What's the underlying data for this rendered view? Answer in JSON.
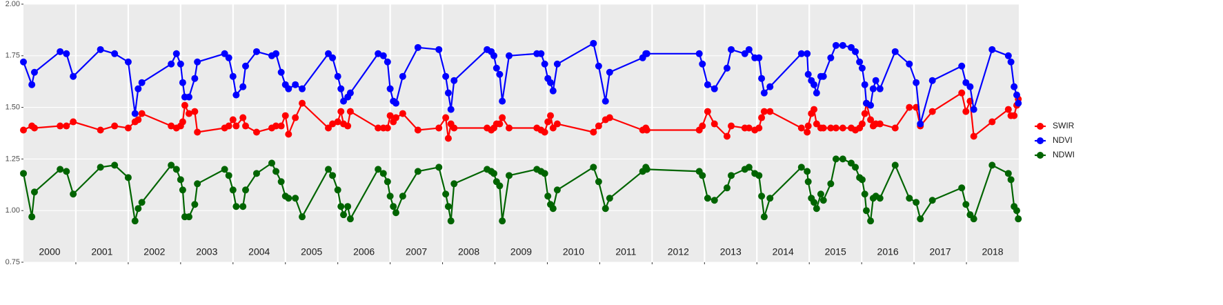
{
  "chart_data": {
    "type": "line",
    "categories": [
      "2000",
      "2001",
      "2002",
      "2003",
      "2004",
      "2005",
      "2006",
      "2007",
      "2008",
      "2009",
      "2010",
      "2011",
      "2012",
      "2013",
      "2014",
      "2015",
      "2016",
      "2017",
      "2018"
    ],
    "x": [
      2000.0,
      2000.16,
      2000.21,
      2000.7,
      2000.82,
      2000.95,
      2001.47,
      2001.74,
      2002.0,
      2002.13,
      2002.19,
      2002.26,
      2002.82,
      2002.92,
      2003.0,
      2003.04,
      2003.08,
      2003.16,
      2003.27,
      2003.32,
      2003.84,
      2003.92,
      2004.0,
      2004.06,
      2004.19,
      2004.24,
      2004.45,
      2004.74,
      2004.82,
      2004.92,
      2005.0,
      2005.06,
      2005.19,
      2005.32,
      2005.82,
      2005.9,
      2006.0,
      2006.06,
      2006.11,
      2006.19,
      2006.24,
      2006.77,
      2006.87,
      2006.95,
      2007.0,
      2007.06,
      2007.11,
      2007.24,
      2007.53,
      2007.93,
      2008.06,
      2008.11,
      2008.16,
      2008.22,
      2008.85,
      2008.93,
      2008.98,
      2009.03,
      2009.09,
      2009.14,
      2009.27,
      2009.8,
      2009.88,
      2009.95,
      2010.01,
      2010.06,
      2010.11,
      2010.19,
      2010.88,
      2010.98,
      2011.11,
      2011.19,
      2011.82,
      2011.88,
      2011.9,
      2012.9,
      2012.96,
      2013.06,
      2013.19,
      2013.43,
      2013.51,
      2013.77,
      2013.85,
      2013.96,
      2014.04,
      2014.09,
      2014.14,
      2014.25,
      2014.85,
      2014.96,
      2014.98,
      2015.04,
      2015.09,
      2015.14,
      2015.22,
      2015.27,
      2015.41,
      2015.51,
      2015.64,
      2015.8,
      2015.88,
      2015.96,
      2016.01,
      2016.06,
      2016.09,
      2016.17,
      2016.22,
      2016.27,
      2016.35,
      2016.64,
      2016.91,
      2017.04,
      2017.12,
      2017.35,
      2017.91,
      2017.99,
      2018.07,
      2018.14,
      2018.49,
      2018.8,
      2018.85,
      2018.91,
      2018.96,
      2018.99
    ],
    "xlim": [
      2000,
      2019
    ],
    "series": [
      {
        "name": "SWIR",
        "color": "#ff0000",
        "values": [
          1.39,
          1.41,
          1.4,
          1.41,
          1.41,
          1.43,
          1.39,
          1.41,
          1.4,
          1.43,
          1.44,
          1.47,
          1.41,
          1.4,
          1.41,
          1.43,
          1.51,
          1.47,
          1.48,
          1.38,
          1.4,
          1.41,
          1.44,
          1.41,
          1.45,
          1.41,
          1.38,
          1.4,
          1.41,
          1.41,
          1.46,
          1.37,
          1.45,
          1.52,
          1.4,
          1.42,
          1.43,
          1.48,
          1.42,
          1.41,
          1.48,
          1.4,
          1.4,
          1.4,
          1.46,
          1.43,
          1.45,
          1.47,
          1.39,
          1.4,
          1.45,
          1.35,
          1.42,
          1.4,
          1.4,
          1.39,
          1.4,
          1.42,
          1.42,
          1.45,
          1.4,
          1.4,
          1.39,
          1.38,
          1.43,
          1.46,
          1.4,
          1.42,
          1.38,
          1.41,
          1.44,
          1.45,
          1.39,
          1.4,
          1.39,
          1.39,
          1.41,
          1.48,
          1.42,
          1.36,
          1.41,
          1.4,
          1.4,
          1.39,
          1.4,
          1.45,
          1.48,
          1.48,
          1.4,
          1.38,
          1.41,
          1.47,
          1.49,
          1.42,
          1.4,
          1.4,
          1.4,
          1.4,
          1.4,
          1.4,
          1.39,
          1.4,
          1.42,
          1.47,
          1.52,
          1.44,
          1.41,
          1.42,
          1.42,
          1.4,
          1.5,
          1.5,
          1.41,
          1.48,
          1.57,
          1.48,
          1.53,
          1.36,
          1.43,
          1.49,
          1.46,
          1.46,
          1.51,
          1.54
        ]
      },
      {
        "name": "NDVI",
        "color": "#0000ff",
        "values": [
          1.72,
          1.61,
          1.67,
          1.77,
          1.76,
          1.65,
          1.78,
          1.76,
          1.72,
          1.47,
          1.59,
          1.62,
          1.71,
          1.76,
          1.71,
          1.62,
          1.55,
          1.55,
          1.64,
          1.72,
          1.76,
          1.74,
          1.65,
          1.56,
          1.6,
          1.7,
          1.77,
          1.75,
          1.76,
          1.67,
          1.61,
          1.59,
          1.61,
          1.59,
          1.76,
          1.74,
          1.65,
          1.59,
          1.53,
          1.55,
          1.57,
          1.76,
          1.75,
          1.72,
          1.59,
          1.53,
          1.52,
          1.65,
          1.79,
          1.78,
          1.65,
          1.57,
          1.49,
          1.63,
          1.78,
          1.77,
          1.75,
          1.69,
          1.66,
          1.53,
          1.75,
          1.76,
          1.76,
          1.71,
          1.64,
          1.62,
          1.58,
          1.71,
          1.81,
          1.7,
          1.53,
          1.67,
          1.74,
          1.76,
          1.76,
          1.76,
          1.71,
          1.61,
          1.59,
          1.69,
          1.78,
          1.76,
          1.78,
          1.74,
          1.74,
          1.64,
          1.57,
          1.6,
          1.76,
          1.76,
          1.66,
          1.63,
          1.61,
          1.57,
          1.65,
          1.65,
          1.74,
          1.8,
          1.8,
          1.79,
          1.77,
          1.72,
          1.69,
          1.61,
          1.52,
          1.51,
          1.59,
          1.63,
          1.59,
          1.77,
          1.71,
          1.62,
          1.42,
          1.63,
          1.7,
          1.62,
          1.6,
          1.49,
          1.78,
          1.75,
          1.72,
          1.6,
          1.56,
          1.52
        ]
      },
      {
        "name": "NDWI",
        "color": "#006400",
        "values": [
          1.18,
          0.97,
          1.09,
          1.2,
          1.19,
          1.08,
          1.21,
          1.22,
          1.16,
          0.95,
          1.01,
          1.04,
          1.22,
          1.2,
          1.15,
          1.1,
          0.97,
          0.97,
          1.03,
          1.13,
          1.2,
          1.17,
          1.1,
          1.02,
          1.02,
          1.1,
          1.18,
          1.23,
          1.19,
          1.14,
          1.07,
          1.06,
          1.06,
          0.97,
          1.2,
          1.17,
          1.1,
          1.02,
          0.98,
          1.02,
          0.96,
          1.2,
          1.18,
          1.14,
          1.07,
          1.02,
          0.99,
          1.07,
          1.19,
          1.21,
          1.08,
          1.02,
          0.95,
          1.13,
          1.2,
          1.19,
          1.18,
          1.14,
          1.12,
          0.95,
          1.17,
          1.2,
          1.19,
          1.18,
          1.07,
          1.03,
          1.01,
          1.1,
          1.21,
          1.14,
          1.01,
          1.06,
          1.19,
          1.21,
          1.2,
          1.19,
          1.17,
          1.06,
          1.05,
          1.11,
          1.17,
          1.2,
          1.21,
          1.18,
          1.17,
          1.07,
          0.97,
          1.06,
          1.21,
          1.19,
          1.14,
          1.06,
          1.04,
          1.01,
          1.08,
          1.05,
          1.13,
          1.25,
          1.25,
          1.23,
          1.21,
          1.16,
          1.15,
          1.08,
          1.0,
          0.95,
          1.06,
          1.07,
          1.06,
          1.22,
          1.06,
          1.04,
          0.96,
          1.05,
          1.11,
          1.03,
          0.98,
          0.96,
          1.22,
          1.18,
          1.15,
          1.02,
          1.0,
          0.96
        ]
      }
    ],
    "ylim": [
      0.75,
      2.0
    ],
    "yticks": [
      {
        "value": 0.75,
        "label": "0.75"
      },
      {
        "value": 1.0,
        "label": "1.00"
      },
      {
        "value": 1.25,
        "label": "1.25"
      },
      {
        "value": 1.5,
        "label": "1.50"
      },
      {
        "value": 1.75,
        "label": "1.75"
      },
      {
        "value": 2.0,
        "label": "2.00"
      }
    ],
    "grid": true,
    "legend": "right"
  }
}
